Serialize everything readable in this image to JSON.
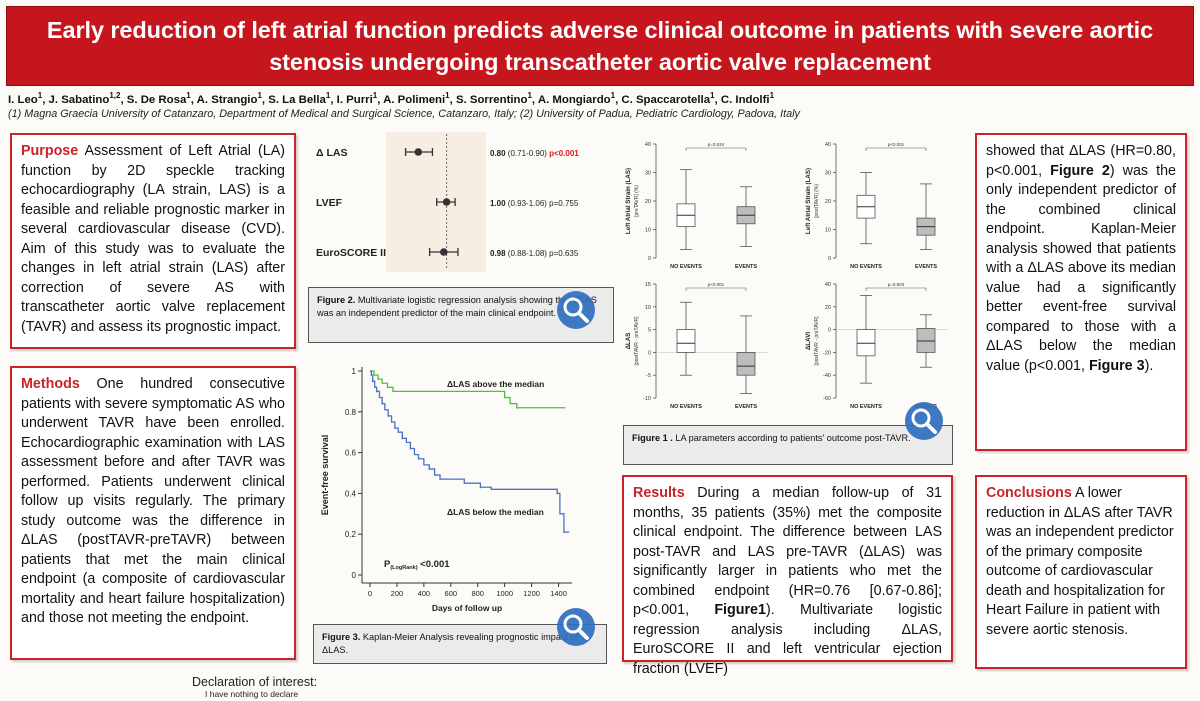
{
  "header": {
    "title_line1": "Early reduction of left atrial function predicts adverse clinical outcome in patients with severe aortic",
    "title_line2": "stenosis undergoing transcatheter aortic valve replacement"
  },
  "authors": [
    {
      "name": "I. Leo",
      "sup": "1"
    },
    {
      "name": "J. Sabatino",
      "sup": "1,2"
    },
    {
      "name": "S. De Rosa",
      "sup": "1"
    },
    {
      "name": "A. Strangio",
      "sup": "1"
    },
    {
      "name": "S. La Bella",
      "sup": "1"
    },
    {
      "name": "I. Purri",
      "sup": "1"
    },
    {
      "name": "A. Polimeni",
      "sup": "1"
    },
    {
      "name": "S. Sorrentino",
      "sup": "1"
    },
    {
      "name": "A. Mongiardo",
      "sup": "1"
    },
    {
      "name": "C. Spaccarotella",
      "sup": "1"
    },
    {
      "name": "C. Indolfi",
      "sup": "1"
    }
  ],
  "affiliations": "(1) Magna Graecia University of Catanzaro, Department of Medical and Surgical Science, Catanzaro, Italy; (2) University of Padua, Pediatric Cardiology, Padova, Italy",
  "purpose": {
    "heading": "Purpose",
    "text": " Assessment of Left Atrial (LA) function by 2D speckle tracking echocardiography (LA strain, LAS) is a feasible and reliable prognostic marker in several cardiovascular disease (CVD). Aim of this study was to evaluate the changes in left atrial strain (LAS) after correction of severe AS with transcatheter aortic valve replacement (TAVR) and assess its prognostic impact."
  },
  "methods": {
    "heading": "Methods",
    "text": " One hundred consecutive patients with severe symptomatic AS who underwent TAVR have been enrolled. Echocardiographic examination with LAS assessment before and after TAVR was performed. Patients underwent clinical follow up visits regularly. The primary study outcome was the difference in ΔLAS (postTAVR-preTAVR) between patients that met the main clinical endpoint (a composite of cardiovascular mortality and heart failure hospitalization) and those not meeting the endpoint."
  },
  "results": {
    "heading": "Results",
    "text1": " During a median follow-up of 31 months, 35 patients (35%) met the composite clinical endpoint. The difference between LAS post-TAVR and LAS pre-TAVR (ΔLAS) was significantly larger in patients who met the combined endpoint (HR=0.76 [0.67-0.86]; p<0.001, ",
    "fig_ref": "Figure1",
    "text2": "). Multivariate logistic regression analysis including ΔLAS, EuroSCORE II and left ventricular ejection fraction (LVEF)"
  },
  "results_cont": {
    "text1": "showed that ΔLAS (HR=0.80, p<0.001, ",
    "fig_ref1": "Figure 2",
    "text2": ") was the only independent predictor of the combined clinical endpoint. Kaplan-Meier analysis showed that patients with a ΔLAS above its median value had a significantly better event-free survival compared to those with a ΔLAS below the median value (p<0.001, ",
    "fig_ref2": "Figure 3",
    "text3": ")."
  },
  "conclusions": {
    "heading": "Conclusions",
    "text": " A lower reduction in ΔLAS after TAVR was an independent predictor of the primary composite outcome of cardiovascular death and hospitalization for Heart Failure in patient with severe aortic stenosis."
  },
  "figure1_caption": {
    "label": "Figure 1 .",
    "text": " LA parameters according to patients' outcome post-TAVR."
  },
  "figure2_caption": {
    "label": "Figure 2.",
    "text": " Multivariate logistic regression analysis showing that ΔLAS was an independent predictor of the main clinical endpoint."
  },
  "figure3_caption": {
    "label": "Figure 3.",
    "text": " Kaplan-Meier Analysis revealing prognostic impact of ΔLAS."
  },
  "declaration": {
    "title": "Declaration of interest:",
    "text": "I have nothing to declare"
  },
  "icons": {
    "zoom": "magnifier-icon"
  },
  "colors": {
    "header": "#c5161d",
    "accent": "#c8242a",
    "zoom": "#2f6fc0",
    "km_above": "#4fc23c",
    "km_below": "#4a73c7",
    "forest_bg": "#f6eee2"
  },
  "chart_data": [
    {
      "id": "figure2-forest",
      "type": "forest",
      "title": "Figure 2",
      "rows": [
        {
          "label": "Δ LAS",
          "or": 0.8,
          "ci": [
            0.71,
            0.9
          ],
          "or_text": "0.80",
          "ci_text": "(0.71-0.90)",
          "p_text": "p<0.001",
          "p_highlight": true
        },
        {
          "label": "LVEF",
          "or": 1.0,
          "ci": [
            0.93,
            1.06
          ],
          "or_text": "1.00",
          "ci_text": "(0.93-1.06)",
          "p_text": "p=0.755",
          "p_highlight": false
        },
        {
          "label": "EuroSCORE II",
          "or": 0.98,
          "ci": [
            0.88,
            1.08
          ],
          "or_text": "0.98",
          "ci_text": "(0.88-1.08)",
          "p_text": "p=0.635",
          "p_highlight": false
        }
      ],
      "xlim": [
        0.6,
        1.25
      ],
      "reference_line": 1.0
    },
    {
      "id": "figure3-km",
      "type": "line",
      "title": "Figure 3",
      "xlabel": "Days of follow up",
      "ylabel": "Event-free survival",
      "xlim": [
        0,
        1500
      ],
      "ylim": [
        0,
        1
      ],
      "xticks": [
        "0",
        "200",
        "400",
        "600",
        "800",
        "1000",
        "1200",
        "1400"
      ],
      "yticks": [
        "0",
        "0.2",
        "0.4",
        "0.6",
        "0.8",
        "1"
      ],
      "p_label": "P",
      "p_sub": "(LogRank)",
      "p_value": " <0.001",
      "series": [
        {
          "name": "ΔLAS above the median",
          "color": "#4fc23c",
          "steps": [
            [
              0,
              1
            ],
            [
              30,
              0.98
            ],
            [
              60,
              0.96
            ],
            [
              90,
              0.94
            ],
            [
              130,
              0.92
            ],
            [
              170,
              0.9
            ],
            [
              1000,
              0.87
            ],
            [
              1040,
              0.84
            ],
            [
              1090,
              0.82
            ],
            [
              1450,
              0.82
            ]
          ]
        },
        {
          "name": "ΔLAS below the median",
          "color": "#4a73c7",
          "steps": [
            [
              0,
              1
            ],
            [
              10,
              0.98
            ],
            [
              20,
              0.95
            ],
            [
              35,
              0.92
            ],
            [
              50,
              0.9
            ],
            [
              70,
              0.87
            ],
            [
              90,
              0.84
            ],
            [
              110,
              0.81
            ],
            [
              135,
              0.78
            ],
            [
              160,
              0.75
            ],
            [
              185,
              0.72
            ],
            [
              210,
              0.7
            ],
            [
              240,
              0.67
            ],
            [
              270,
              0.65
            ],
            [
              300,
              0.62
            ],
            [
              330,
              0.59
            ],
            [
              360,
              0.57
            ],
            [
              400,
              0.54
            ],
            [
              440,
              0.52
            ],
            [
              480,
              0.49
            ],
            [
              520,
              0.47
            ],
            [
              700,
              0.45
            ],
            [
              820,
              0.43
            ],
            [
              900,
              0.42
            ],
            [
              1390,
              0.4
            ],
            [
              1410,
              0.3
            ],
            [
              1440,
              0.21
            ],
            [
              1480,
              0.21
            ]
          ]
        }
      ]
    },
    {
      "id": "figure1-boxplots",
      "type": "box",
      "title": "Figure 1",
      "panels": [
        {
          "ylabel": "Left Atrial Strain (LAS)",
          "ysub": "[preTAVR] (%)",
          "ylim": [
            0,
            40
          ],
          "yticks": [
            0,
            10,
            20,
            30,
            40
          ],
          "p_text": "p=0.634",
          "groups": [
            {
              "name": "NO EVENTS",
              "min": 3,
              "q1": 11,
              "median": 15,
              "q3": 19,
              "max": 31,
              "fill": "#ffffff"
            },
            {
              "name": "EVENTS",
              "min": 4,
              "q1": 12,
              "median": 15,
              "q3": 18,
              "max": 25,
              "fill": "#bdbdbd"
            }
          ]
        },
        {
          "ylabel": "Left Atrial Strain (LAS)",
          "ysub": "[postTAVR] (%)",
          "ylim": [
            0,
            40
          ],
          "yticks": [
            0,
            10,
            20,
            30,
            40
          ],
          "p_text": "p<0.001",
          "groups": [
            {
              "name": "NO EVENTS",
              "min": 5,
              "q1": 14,
              "median": 18,
              "q3": 22,
              "max": 30,
              "fill": "#ffffff"
            },
            {
              "name": "EVENTS",
              "min": 3,
              "q1": 8,
              "median": 11,
              "q3": 14,
              "max": 26,
              "fill": "#bdbdbd"
            }
          ]
        },
        {
          "ylabel": "ΔLAS",
          "ysub": "[postTAVR - preTAVR]",
          "ylim": [
            -10,
            15
          ],
          "yticks": [
            -10,
            -5,
            0,
            5,
            10,
            15
          ],
          "p_text": "p<0.001",
          "groups": [
            {
              "name": "NO EVENTS",
              "min": -5,
              "q1": 0,
              "median": 2,
              "q3": 5,
              "max": 11,
              "fill": "#ffffff"
            },
            {
              "name": "EVENTS",
              "min": -9,
              "q1": -5,
              "median": -3,
              "q3": 0,
              "max": 8,
              "fill": "#bdbdbd"
            }
          ]
        },
        {
          "ylabel": "ΔLAVI",
          "ysub": "[postTAVR - preTAVR]",
          "ylim": [
            -60,
            40
          ],
          "yticks": [
            -60,
            -40,
            -20,
            0,
            20,
            40
          ],
          "p_text": "p=0.903",
          "groups": [
            {
              "name": "NO EVENTS",
              "min": -47,
              "q1": -23,
              "median": -12,
              "q3": 0,
              "max": 30,
              "fill": "#ffffff"
            },
            {
              "name": "EVENTS",
              "min": -33,
              "q1": -20,
              "median": -10,
              "q3": 1,
              "max": 13,
              "fill": "#bdbdbd"
            }
          ]
        }
      ]
    }
  ]
}
